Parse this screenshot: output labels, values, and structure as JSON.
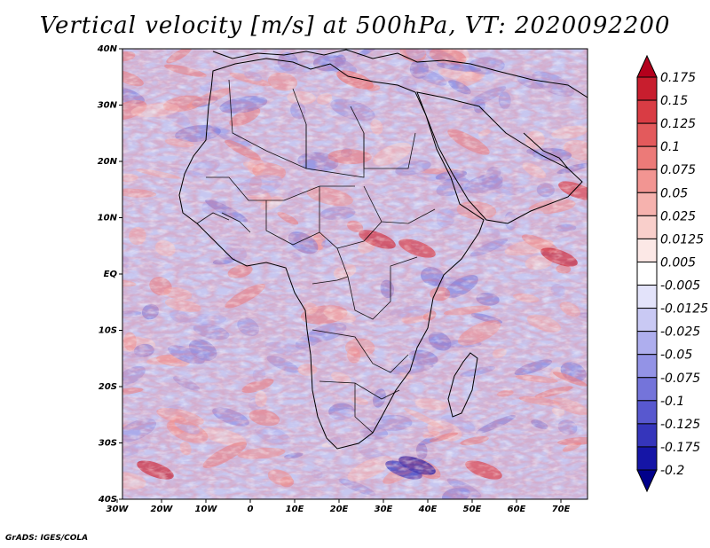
{
  "title": "Vertical velocity [m/s] at 500hPa, VT: 2020092200",
  "credit": "GrADS: IGES/COLA",
  "map": {
    "lat_labels": [
      "40N",
      "30N",
      "20N",
      "10N",
      "EQ",
      "10S",
      "20S",
      "30S",
      "40S"
    ],
    "lon_labels": [
      "30W",
      "20W",
      "10W",
      "0",
      "10E",
      "20E",
      "30E",
      "40E",
      "50E",
      "60E",
      "70E"
    ]
  },
  "colorbar": {
    "labels": [
      "0.175",
      "0.15",
      "0.125",
      "0.1",
      "0.075",
      "0.05",
      "0.025",
      "0.0125",
      "0.005",
      "-0.005",
      "-0.0125",
      "-0.025",
      "-0.05",
      "-0.075",
      "-0.1",
      "-0.125",
      "-0.175",
      "-0.2"
    ],
    "colors": [
      "#b3001c",
      "#c81e2e",
      "#d93c44",
      "#e35a5c",
      "#ec7a78",
      "#f29592",
      "#f6b2ae",
      "#f9cfcb",
      "#fce8e6",
      "#ffffff",
      "#e3e3fa",
      "#c9c9f4",
      "#aeaeee",
      "#9393e6",
      "#7474da",
      "#5858cf",
      "#3535bb",
      "#1515a6",
      "#00008b"
    ]
  }
}
